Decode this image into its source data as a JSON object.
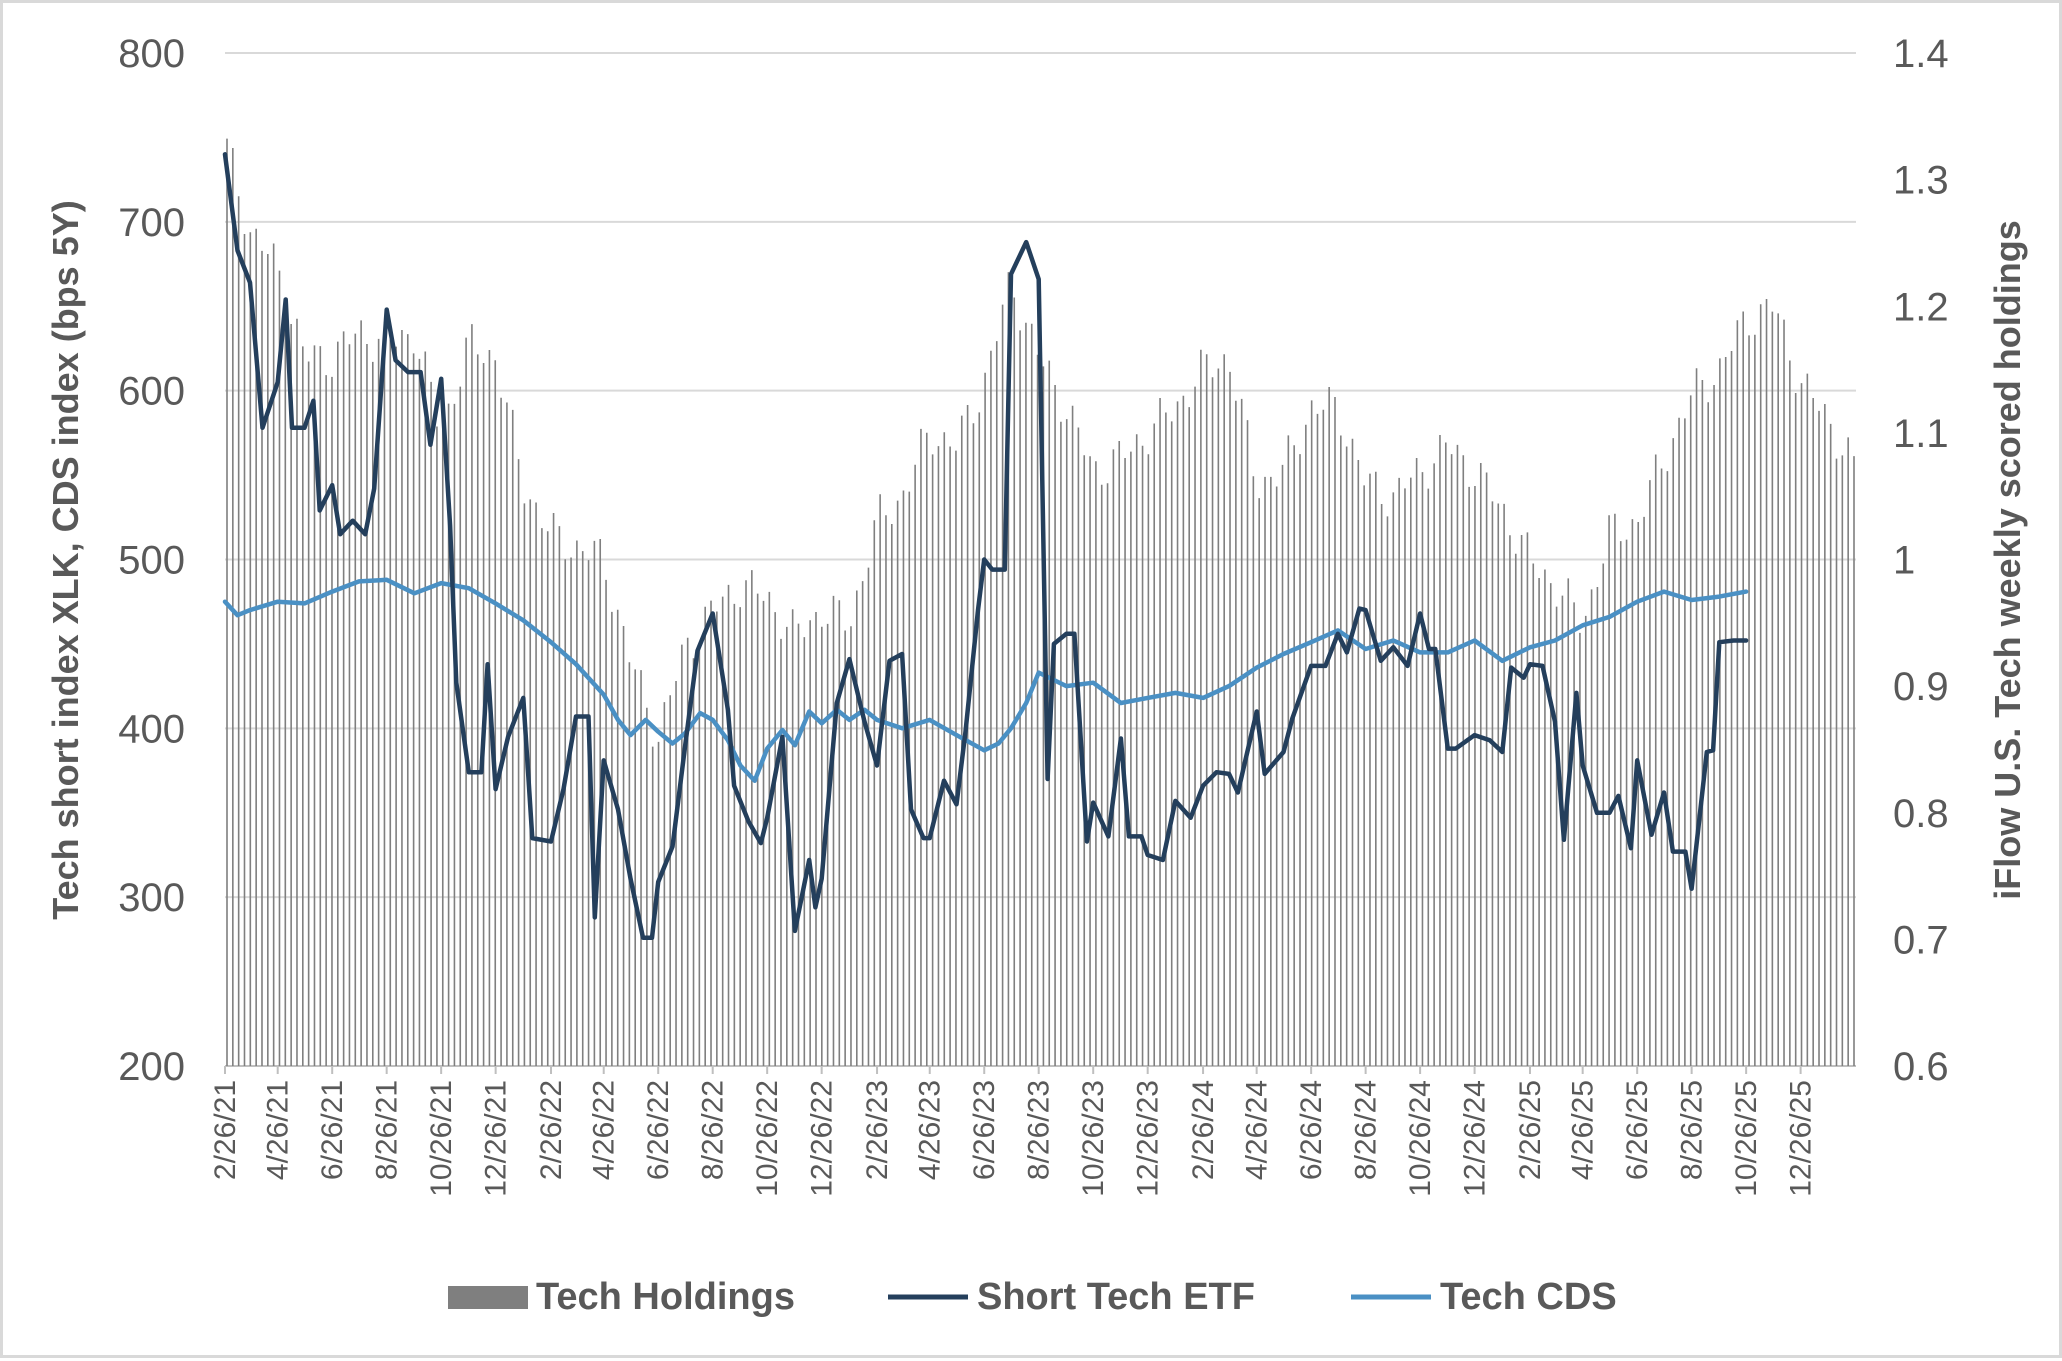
{
  "chart_data": {
    "type": "line",
    "title": "",
    "y_left": {
      "label": "Tech short index XLK, CDS index (bps 5Y)",
      "range": [
        200,
        800
      ],
      "ticks": [
        "800",
        "700",
        "600",
        "500",
        "400",
        "300",
        "200"
      ]
    },
    "y_right": {
      "label": "iFlow U.S. Tech weekly scored holdings",
      "range": [
        0.6,
        1.4
      ],
      "ticks": [
        "1.4",
        "1.3",
        "1.2",
        "1.1",
        "1",
        "0.9",
        "0.8",
        "0.7",
        "0.6"
      ]
    },
    "x_range": [
      "2021-02-26",
      "2026-02-26"
    ],
    "x_ticks": [
      "2/26/21",
      "4/26/21",
      "6/26/21",
      "8/26/21",
      "10/26/21",
      "12/26/21",
      "2/26/22",
      "4/26/22",
      "6/26/22",
      "8/26/22",
      "10/26/22",
      "12/26/22",
      "2/26/23",
      "4/26/23",
      "6/26/23",
      "8/26/23",
      "10/26/23",
      "12/26/23",
      "2/26/24",
      "4/26/24",
      "6/26/24",
      "8/26/24",
      "10/26/24",
      "12/26/24",
      "2/26/25",
      "4/26/25",
      "6/26/25",
      "8/26/25",
      "10/26/25",
      "12/26/25"
    ],
    "grid": true,
    "legend_position": "bottom",
    "series": [
      {
        "name": "Tech Holdings",
        "type": "bar",
        "axis": "right",
        "color": "#7f7f7f",
        "points": [
          [
            "2021-02-26",
            1.33
          ],
          [
            "2021-03-26",
            1.26
          ],
          [
            "2021-04-26",
            1.23
          ],
          [
            "2021-05-26",
            1.16
          ],
          [
            "2021-06-26",
            1.16
          ],
          [
            "2021-07-26",
            1.18
          ],
          [
            "2021-08-26",
            1.17
          ],
          [
            "2021-09-26",
            1.18
          ],
          [
            "2021-10-26",
            1.1
          ],
          [
            "2021-11-26",
            1.17
          ],
          [
            "2021-12-26",
            1.16
          ],
          [
            "2022-01-26",
            1.06
          ],
          [
            "2022-02-26",
            1.02
          ],
          [
            "2022-03-26",
            1.01
          ],
          [
            "2022-04-26",
            1.0
          ],
          [
            "2022-05-26",
            0.92
          ],
          [
            "2022-06-26",
            0.86
          ],
          [
            "2022-07-26",
            0.93
          ],
          [
            "2022-08-26",
            0.96
          ],
          [
            "2022-09-26",
            0.98
          ],
          [
            "2022-10-26",
            0.97
          ],
          [
            "2022-11-26",
            0.94
          ],
          [
            "2022-12-26",
            0.96
          ],
          [
            "2023-01-26",
            0.95
          ],
          [
            "2023-02-26",
            1.03
          ],
          [
            "2023-03-26",
            1.05
          ],
          [
            "2023-04-26",
            1.1
          ],
          [
            "2023-05-26",
            1.09
          ],
          [
            "2023-06-26",
            1.14
          ],
          [
            "2023-07-26",
            1.22
          ],
          [
            "2023-08-26",
            1.16
          ],
          [
            "2023-09-26",
            1.12
          ],
          [
            "2023-10-26",
            1.07
          ],
          [
            "2023-11-26",
            1.08
          ],
          [
            "2023-12-26",
            1.1
          ],
          [
            "2024-01-26",
            1.12
          ],
          [
            "2024-02-26",
            1.15
          ],
          [
            "2024-03-26",
            1.16
          ],
          [
            "2024-04-26",
            1.06
          ],
          [
            "2024-05-26",
            1.07
          ],
          [
            "2024-06-26",
            1.12
          ],
          [
            "2024-07-26",
            1.12
          ],
          [
            "2024-08-26",
            1.06
          ],
          [
            "2024-09-26",
            1.05
          ],
          [
            "2024-10-26",
            1.07
          ],
          [
            "2024-11-26",
            1.09
          ],
          [
            "2024-12-26",
            1.07
          ],
          [
            "2025-01-26",
            1.04
          ],
          [
            "2025-02-26",
            1.0
          ],
          [
            "2025-03-26",
            0.98
          ],
          [
            "2025-04-26",
            0.95
          ],
          [
            "2025-05-26",
            1.02
          ],
          [
            "2025-06-26",
            1.03
          ],
          [
            "2025-07-26",
            1.08
          ],
          [
            "2025-08-26",
            1.13
          ],
          [
            "2025-09-26",
            1.15
          ],
          [
            "2025-10-26",
            1.19
          ],
          [
            "2025-11-26",
            1.2
          ],
          [
            "2025-12-26",
            1.14
          ],
          [
            "2026-01-26",
            1.11
          ],
          [
            "2026-02-26",
            1.07
          ]
        ]
      },
      {
        "name": "Short Tech ETF",
        "type": "line",
        "axis": "left",
        "color": "#243f5c",
        "points": [
          [
            "2021-02-26",
            740
          ],
          [
            "2021-03-12",
            683
          ],
          [
            "2021-03-26",
            664
          ],
          [
            "2021-04-09",
            578
          ],
          [
            "2021-04-26",
            605
          ],
          [
            "2021-05-05",
            654
          ],
          [
            "2021-05-12",
            578
          ],
          [
            "2021-05-26",
            578
          ],
          [
            "2021-06-05",
            594
          ],
          [
            "2021-06-12",
            529
          ],
          [
            "2021-06-26",
            544
          ],
          [
            "2021-07-05",
            515
          ],
          [
            "2021-07-19",
            523
          ],
          [
            "2021-08-02",
            515
          ],
          [
            "2021-08-12",
            542
          ],
          [
            "2021-08-26",
            648
          ],
          [
            "2021-09-05",
            618
          ],
          [
            "2021-09-19",
            611
          ],
          [
            "2021-10-03",
            611
          ],
          [
            "2021-10-14",
            568
          ],
          [
            "2021-10-26",
            607
          ],
          [
            "2021-11-05",
            520
          ],
          [
            "2021-11-12",
            427
          ],
          [
            "2021-11-26",
            374
          ],
          [
            "2021-12-10",
            374
          ],
          [
            "2021-12-17",
            438
          ],
          [
            "2021-12-26",
            364
          ],
          [
            "2022-01-09",
            395
          ],
          [
            "2022-01-26",
            418
          ],
          [
            "2022-02-05",
            335
          ],
          [
            "2022-02-26",
            333
          ],
          [
            "2022-03-12",
            364
          ],
          [
            "2022-03-26",
            407
          ],
          [
            "2022-04-09",
            407
          ],
          [
            "2022-04-16",
            288
          ],
          [
            "2022-04-26",
            381
          ],
          [
            "2022-05-12",
            352
          ],
          [
            "2022-05-26",
            311
          ],
          [
            "2022-06-09",
            276
          ],
          [
            "2022-06-19",
            276
          ],
          [
            "2022-06-26",
            309
          ],
          [
            "2022-07-12",
            330
          ],
          [
            "2022-07-26",
            389
          ],
          [
            "2022-08-09",
            446
          ],
          [
            "2022-08-26",
            468
          ],
          [
            "2022-09-12",
            411
          ],
          [
            "2022-09-19",
            366
          ],
          [
            "2022-10-05",
            345
          ],
          [
            "2022-10-19",
            332
          ],
          [
            "2022-10-26",
            347
          ],
          [
            "2022-11-12",
            395
          ],
          [
            "2022-11-26",
            280
          ],
          [
            "2022-12-12",
            322
          ],
          [
            "2022-12-19",
            294
          ],
          [
            "2022-12-26",
            311
          ],
          [
            "2023-01-12",
            415
          ],
          [
            "2023-01-26",
            441
          ],
          [
            "2023-02-12",
            404
          ],
          [
            "2023-02-26",
            378
          ],
          [
            "2023-03-12",
            440
          ],
          [
            "2023-03-26",
            444
          ],
          [
            "2023-04-05",
            352
          ],
          [
            "2023-04-19",
            335
          ],
          [
            "2023-04-26",
            335
          ],
          [
            "2023-05-12",
            369
          ],
          [
            "2023-05-26",
            355
          ],
          [
            "2023-06-05",
            398
          ],
          [
            "2023-06-19",
            470
          ],
          [
            "2023-06-26",
            500
          ],
          [
            "2023-07-05",
            494
          ],
          [
            "2023-07-19",
            494
          ],
          [
            "2023-07-26",
            669
          ],
          [
            "2023-08-12",
            688
          ],
          [
            "2023-08-26",
            666
          ],
          [
            "2023-09-05",
            370
          ],
          [
            "2023-09-12",
            450
          ],
          [
            "2023-09-26",
            456
          ],
          [
            "2023-10-05",
            456
          ],
          [
            "2023-10-19",
            333
          ],
          [
            "2023-10-26",
            356
          ],
          [
            "2023-11-12",
            336
          ],
          [
            "2023-11-26",
            394
          ],
          [
            "2023-12-05",
            336
          ],
          [
            "2023-12-19",
            336
          ],
          [
            "2023-12-26",
            325
          ],
          [
            "2024-01-12",
            322
          ],
          [
            "2024-01-26",
            357
          ],
          [
            "2024-02-12",
            347
          ],
          [
            "2024-02-26",
            366
          ],
          [
            "2024-03-12",
            374
          ],
          [
            "2024-03-26",
            373
          ],
          [
            "2024-04-05",
            362
          ],
          [
            "2024-04-26",
            410
          ],
          [
            "2024-05-05",
            373
          ],
          [
            "2024-05-26",
            386
          ],
          [
            "2024-06-05",
            406
          ],
          [
            "2024-06-26",
            437
          ],
          [
            "2024-07-12",
            437
          ],
          [
            "2024-07-26",
            456
          ],
          [
            "2024-08-05",
            445
          ],
          [
            "2024-08-19",
            471
          ],
          [
            "2024-08-26",
            470
          ],
          [
            "2024-09-12",
            440
          ],
          [
            "2024-09-26",
            448
          ],
          [
            "2024-10-12",
            437
          ],
          [
            "2024-10-26",
            468
          ],
          [
            "2024-11-05",
            447
          ],
          [
            "2024-11-12",
            447
          ],
          [
            "2024-11-26",
            388
          ],
          [
            "2024-12-05",
            388
          ],
          [
            "2024-12-26",
            396
          ],
          [
            "2025-01-12",
            393
          ],
          [
            "2025-01-26",
            386
          ],
          [
            "2025-02-05",
            436
          ],
          [
            "2025-02-19",
            430
          ],
          [
            "2025-02-26",
            438
          ],
          [
            "2025-03-12",
            437
          ],
          [
            "2025-03-26",
            404
          ],
          [
            "2025-04-05",
            334
          ],
          [
            "2025-04-19",
            421
          ],
          [
            "2025-04-26",
            378
          ],
          [
            "2025-05-12",
            350
          ],
          [
            "2025-05-26",
            350
          ],
          [
            "2025-06-05",
            360
          ],
          [
            "2025-06-19",
            329
          ],
          [
            "2025-06-26",
            381
          ],
          [
            "2025-07-12",
            337
          ],
          [
            "2025-07-26",
            362
          ],
          [
            "2025-08-05",
            327
          ],
          [
            "2025-08-19",
            327
          ],
          [
            "2025-08-26",
            305
          ],
          [
            "2025-09-12",
            386
          ],
          [
            "2025-09-19",
            387
          ],
          [
            "2025-09-26",
            451
          ],
          [
            "2025-10-12",
            452
          ],
          [
            "2025-10-26",
            452
          ]
        ]
      },
      {
        "name": "Tech CDS",
        "type": "line",
        "axis": "left",
        "color": "#4a90c4",
        "points": [
          [
            "2021-02-26",
            475
          ],
          [
            "2021-03-12",
            467
          ],
          [
            "2021-03-26",
            470
          ],
          [
            "2021-04-26",
            475
          ],
          [
            "2021-05-26",
            474
          ],
          [
            "2021-06-26",
            481
          ],
          [
            "2021-07-26",
            487
          ],
          [
            "2021-08-26",
            488
          ],
          [
            "2021-09-26",
            480
          ],
          [
            "2021-10-26",
            486
          ],
          [
            "2021-11-26",
            483
          ],
          [
            "2021-12-26",
            474
          ],
          [
            "2022-01-26",
            464
          ],
          [
            "2022-02-26",
            451
          ],
          [
            "2022-03-26",
            438
          ],
          [
            "2022-04-26",
            420
          ],
          [
            "2022-05-12",
            405
          ],
          [
            "2022-05-26",
            396
          ],
          [
            "2022-06-12",
            405
          ],
          [
            "2022-06-26",
            398
          ],
          [
            "2022-07-12",
            391
          ],
          [
            "2022-07-26",
            397
          ],
          [
            "2022-08-12",
            409
          ],
          [
            "2022-08-26",
            405
          ],
          [
            "2022-09-12",
            393
          ],
          [
            "2022-09-26",
            378
          ],
          [
            "2022-10-12",
            369
          ],
          [
            "2022-10-26",
            388
          ],
          [
            "2022-11-12",
            399
          ],
          [
            "2022-11-26",
            390
          ],
          [
            "2022-12-12",
            410
          ],
          [
            "2022-12-26",
            403
          ],
          [
            "2023-01-12",
            411
          ],
          [
            "2023-01-26",
            405
          ],
          [
            "2023-02-12",
            411
          ],
          [
            "2023-02-26",
            405
          ],
          [
            "2023-03-26",
            400
          ],
          [
            "2023-04-26",
            405
          ],
          [
            "2023-05-26",
            396
          ],
          [
            "2023-06-26",
            387
          ],
          [
            "2023-07-12",
            391
          ],
          [
            "2023-07-26",
            400
          ],
          [
            "2023-08-12",
            415
          ],
          [
            "2023-08-26",
            433
          ],
          [
            "2023-09-26",
            425
          ],
          [
            "2023-10-26",
            427
          ],
          [
            "2023-11-26",
            415
          ],
          [
            "2023-12-26",
            418
          ],
          [
            "2024-01-26",
            421
          ],
          [
            "2024-02-26",
            418
          ],
          [
            "2024-03-26",
            425
          ],
          [
            "2024-04-26",
            436
          ],
          [
            "2024-05-26",
            444
          ],
          [
            "2024-06-26",
            451
          ],
          [
            "2024-07-26",
            458
          ],
          [
            "2024-08-26",
            447
          ],
          [
            "2024-09-26",
            452
          ],
          [
            "2024-10-26",
            445
          ],
          [
            "2024-11-26",
            445
          ],
          [
            "2024-12-26",
            452
          ],
          [
            "2025-01-26",
            440
          ],
          [
            "2025-02-26",
            448
          ],
          [
            "2025-03-26",
            452
          ],
          [
            "2025-04-26",
            461
          ],
          [
            "2025-05-26",
            466
          ],
          [
            "2025-06-26",
            475
          ],
          [
            "2025-07-26",
            481
          ],
          [
            "2025-08-26",
            476
          ],
          [
            "2025-09-26",
            478
          ],
          [
            "2025-10-26",
            481
          ]
        ]
      }
    ]
  }
}
